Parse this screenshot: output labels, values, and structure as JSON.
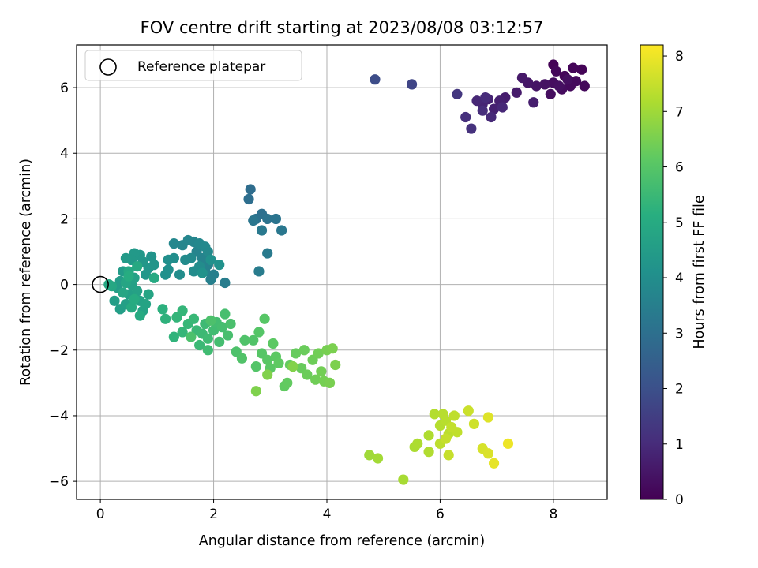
{
  "chart_data": {
    "type": "scatter",
    "title": "FOV centre drift starting at 2023/08/08 03:12:57",
    "xlabel": "Angular distance from reference (arcmin)",
    "ylabel": "Rotation from reference (arcmin)",
    "xlim": [
      -0.42,
      8.95
    ],
    "ylim": [
      -6.55,
      7.3
    ],
    "xticks": [
      "0",
      "2",
      "4",
      "6",
      "8"
    ],
    "yticks": [
      "−6",
      "−4",
      "−2",
      "0",
      "2",
      "4",
      "6"
    ],
    "grid": true,
    "legend": {
      "placement": "top-left",
      "entries": [
        "Reference platepar"
      ]
    },
    "reference_point": {
      "x": 0,
      "y": 0
    },
    "colorbar": {
      "label": "Hours from first FF file",
      "range": [
        0,
        8.2
      ],
      "ticks": [
        "0",
        "1",
        "2",
        "3",
        "4",
        "5",
        "6",
        "7",
        "8"
      ],
      "colormap": "viridis"
    },
    "points": [
      {
        "x": 8.0,
        "y": 6.7,
        "c": 0.05
      },
      {
        "x": 8.5,
        "y": 6.55,
        "c": 0.08
      },
      {
        "x": 8.35,
        "y": 6.6,
        "c": 0.1
      },
      {
        "x": 8.2,
        "y": 6.35,
        "c": 0.12
      },
      {
        "x": 8.05,
        "y": 6.5,
        "c": 0.15
      },
      {
        "x": 8.55,
        "y": 6.05,
        "c": 0.18
      },
      {
        "x": 8.4,
        "y": 6.2,
        "c": 0.2
      },
      {
        "x": 8.3,
        "y": 6.05,
        "c": 0.22
      },
      {
        "x": 8.15,
        "y": 5.95,
        "c": 0.25
      },
      {
        "x": 8.0,
        "y": 6.15,
        "c": 0.28
      },
      {
        "x": 7.95,
        "y": 5.8,
        "c": 0.3
      },
      {
        "x": 8.25,
        "y": 6.25,
        "c": 0.32
      },
      {
        "x": 8.1,
        "y": 6.05,
        "c": 0.35
      },
      {
        "x": 7.85,
        "y": 6.1,
        "c": 0.4
      },
      {
        "x": 7.7,
        "y": 6.05,
        "c": 0.45
      },
      {
        "x": 7.55,
        "y": 6.15,
        "c": 0.5
      },
      {
        "x": 7.45,
        "y": 6.3,
        "c": 0.55
      },
      {
        "x": 7.35,
        "y": 5.85,
        "c": 0.6
      },
      {
        "x": 7.15,
        "y": 5.7,
        "c": 0.65
      },
      {
        "x": 7.65,
        "y": 5.55,
        "c": 0.68
      },
      {
        "x": 7.05,
        "y": 5.6,
        "c": 0.72
      },
      {
        "x": 6.95,
        "y": 5.35,
        "c": 0.75
      },
      {
        "x": 6.85,
        "y": 5.65,
        "c": 0.8
      },
      {
        "x": 6.75,
        "y": 5.5,
        "c": 0.85
      },
      {
        "x": 6.65,
        "y": 5.6,
        "c": 0.9
      },
      {
        "x": 7.1,
        "y": 5.4,
        "c": 0.92
      },
      {
        "x": 6.9,
        "y": 5.1,
        "c": 0.95
      },
      {
        "x": 6.8,
        "y": 5.7,
        "c": 1.0
      },
      {
        "x": 6.75,
        "y": 5.3,
        "c": 1.05
      },
      {
        "x": 6.45,
        "y": 5.1,
        "c": 1.1
      },
      {
        "x": 6.55,
        "y": 4.75,
        "c": 1.15
      },
      {
        "x": 6.3,
        "y": 5.8,
        "c": 1.3
      },
      {
        "x": 5.5,
        "y": 6.1,
        "c": 1.7
      },
      {
        "x": 4.85,
        "y": 6.25,
        "c": 1.9
      },
      {
        "x": 2.65,
        "y": 2.9,
        "c": 2.9
      },
      {
        "x": 2.62,
        "y": 2.6,
        "c": 2.95
      },
      {
        "x": 2.85,
        "y": 2.15,
        "c": 3.0
      },
      {
        "x": 2.75,
        "y": 2.0,
        "c": 3.05
      },
      {
        "x": 2.95,
        "y": 2.0,
        "c": 3.1
      },
      {
        "x": 3.1,
        "y": 2.0,
        "c": 3.15
      },
      {
        "x": 2.7,
        "y": 1.95,
        "c": 3.2
      },
      {
        "x": 3.2,
        "y": 1.65,
        "c": 3.25
      },
      {
        "x": 2.85,
        "y": 1.65,
        "c": 3.3
      },
      {
        "x": 2.95,
        "y": 0.95,
        "c": 3.35
      },
      {
        "x": 2.8,
        "y": 0.4,
        "c": 3.4
      },
      {
        "x": 2.2,
        "y": 0.05,
        "c": 3.45
      },
      {
        "x": 2.0,
        "y": 0.3,
        "c": 3.5
      },
      {
        "x": 1.95,
        "y": 0.15,
        "c": 3.55
      },
      {
        "x": 1.85,
        "y": 0.4,
        "c": 3.6
      },
      {
        "x": 1.9,
        "y": 0.6,
        "c": 3.62
      },
      {
        "x": 1.8,
        "y": 0.8,
        "c": 3.65
      },
      {
        "x": 1.7,
        "y": 1.0,
        "c": 3.68
      },
      {
        "x": 1.65,
        "y": 1.3,
        "c": 3.7
      },
      {
        "x": 1.55,
        "y": 1.35,
        "c": 3.72
      },
      {
        "x": 1.45,
        "y": 1.2,
        "c": 3.75
      },
      {
        "x": 1.3,
        "y": 1.25,
        "c": 3.78
      },
      {
        "x": 1.75,
        "y": 1.25,
        "c": 3.8
      },
      {
        "x": 1.85,
        "y": 1.15,
        "c": 3.82
      },
      {
        "x": 1.9,
        "y": 1.0,
        "c": 3.85
      },
      {
        "x": 1.6,
        "y": 0.8,
        "c": 3.88
      },
      {
        "x": 1.5,
        "y": 0.75,
        "c": 3.9
      },
      {
        "x": 1.75,
        "y": 0.55,
        "c": 3.92
      },
      {
        "x": 1.65,
        "y": 0.4,
        "c": 3.95
      },
      {
        "x": 1.4,
        "y": 0.3,
        "c": 3.98
      },
      {
        "x": 1.3,
        "y": 0.8,
        "c": 4.0
      },
      {
        "x": 1.2,
        "y": 0.75,
        "c": 4.02
      },
      {
        "x": 1.2,
        "y": 0.45,
        "c": 4.05
      },
      {
        "x": 1.15,
        "y": 0.3,
        "c": 4.08
      },
      {
        "x": 1.95,
        "y": 0.75,
        "c": 4.1
      },
      {
        "x": 2.1,
        "y": 0.6,
        "c": 4.12
      },
      {
        "x": 1.8,
        "y": 0.35,
        "c": 4.15
      },
      {
        "x": 0.9,
        "y": 0.85,
        "c": 4.2
      },
      {
        "x": 0.95,
        "y": 0.6,
        "c": 4.25
      },
      {
        "x": 0.85,
        "y": 0.5,
        "c": 4.28
      },
      {
        "x": 0.8,
        "y": 0.3,
        "c": 4.3
      },
      {
        "x": 0.75,
        "y": 0.7,
        "c": 4.32
      },
      {
        "x": 0.7,
        "y": 0.9,
        "c": 4.35
      },
      {
        "x": 0.6,
        "y": 0.95,
        "c": 4.38
      },
      {
        "x": 0.55,
        "y": 0.75,
        "c": 4.4
      },
      {
        "x": 0.45,
        "y": 0.8,
        "c": 4.42
      },
      {
        "x": 0.4,
        "y": 0.4,
        "c": 4.45
      },
      {
        "x": 0.35,
        "y": 0.1,
        "c": 4.48
      },
      {
        "x": 0.3,
        "y": -0.1,
        "c": 4.5
      },
      {
        "x": 0.25,
        "y": -0.5,
        "c": 4.52
      },
      {
        "x": 0.35,
        "y": -0.75,
        "c": 4.55
      },
      {
        "x": 0.45,
        "y": -0.6,
        "c": 4.58
      },
      {
        "x": 0.5,
        "y": -0.3,
        "c": 4.6
      },
      {
        "x": 0.55,
        "y": 0.0,
        "c": 4.62
      },
      {
        "x": 0.6,
        "y": 0.2,
        "c": 4.65
      },
      {
        "x": 0.65,
        "y": -0.2,
        "c": 4.68
      },
      {
        "x": 0.7,
        "y": -0.5,
        "c": 4.7
      },
      {
        "x": 0.75,
        "y": -0.8,
        "c": 4.72
      },
      {
        "x": 0.8,
        "y": -0.6,
        "c": 4.75
      },
      {
        "x": 0.85,
        "y": -0.3,
        "c": 4.78
      },
      {
        "x": 0.45,
        "y": 0.05,
        "c": 4.8
      },
      {
        "x": 0.4,
        "y": -0.25,
        "c": 4.82
      },
      {
        "x": 0.2,
        "y": -0.05,
        "c": 4.85
      },
      {
        "x": 0.15,
        "y": 0.0,
        "c": 4.88
      },
      {
        "x": 0.5,
        "y": 0.4,
        "c": 4.9
      },
      {
        "x": 0.65,
        "y": 0.55,
        "c": 4.92
      },
      {
        "x": 0.95,
        "y": 0.2,
        "c": 4.95
      },
      {
        "x": 0.7,
        "y": -0.95,
        "c": 4.98
      },
      {
        "x": 0.55,
        "y": -0.7,
        "c": 5.0
      },
      {
        "x": 0.6,
        "y": -0.45,
        "c": 5.02
      },
      {
        "x": 0.5,
        "y": 0.25,
        "c": 5.05
      },
      {
        "x": 1.1,
        "y": -0.75,
        "c": 5.2
      },
      {
        "x": 1.15,
        "y": -1.05,
        "c": 5.25
      },
      {
        "x": 1.3,
        "y": -1.6,
        "c": 5.3
      },
      {
        "x": 1.35,
        "y": -1.0,
        "c": 5.35
      },
      {
        "x": 1.45,
        "y": -0.8,
        "c": 5.38
      },
      {
        "x": 1.45,
        "y": -1.45,
        "c": 5.4
      },
      {
        "x": 1.55,
        "y": -1.2,
        "c": 5.42
      },
      {
        "x": 1.65,
        "y": -1.05,
        "c": 5.45
      },
      {
        "x": 1.7,
        "y": -1.4,
        "c": 5.48
      },
      {
        "x": 1.75,
        "y": -1.85,
        "c": 5.5
      },
      {
        "x": 1.8,
        "y": -1.5,
        "c": 5.52
      },
      {
        "x": 1.85,
        "y": -1.2,
        "c": 5.55
      },
      {
        "x": 1.9,
        "y": -1.65,
        "c": 5.58
      },
      {
        "x": 1.9,
        "y": -2.0,
        "c": 5.6
      },
      {
        "x": 2.0,
        "y": -1.4,
        "c": 5.62
      },
      {
        "x": 2.05,
        "y": -1.15,
        "c": 5.65
      },
      {
        "x": 2.1,
        "y": -1.75,
        "c": 5.68
      },
      {
        "x": 2.15,
        "y": -1.3,
        "c": 5.7
      },
      {
        "x": 2.2,
        "y": -0.9,
        "c": 5.72
      },
      {
        "x": 2.25,
        "y": -1.55,
        "c": 5.75
      },
      {
        "x": 2.3,
        "y": -1.2,
        "c": 5.78
      },
      {
        "x": 1.6,
        "y": -1.6,
        "c": 5.8
      },
      {
        "x": 1.95,
        "y": -1.1,
        "c": 5.82
      },
      {
        "x": 2.4,
        "y": -2.05,
        "c": 5.85
      },
      {
        "x": 2.55,
        "y": -1.7,
        "c": 5.88
      },
      {
        "x": 2.5,
        "y": -2.25,
        "c": 5.9
      },
      {
        "x": 2.7,
        "y": -1.7,
        "c": 5.92
      },
      {
        "x": 2.75,
        "y": -2.5,
        "c": 5.95
      },
      {
        "x": 2.8,
        "y": -1.45,
        "c": 5.98
      },
      {
        "x": 2.85,
        "y": -2.1,
        "c": 6.0
      },
      {
        "x": 2.9,
        "y": -1.05,
        "c": 6.02
      },
      {
        "x": 2.95,
        "y": -2.3,
        "c": 6.05
      },
      {
        "x": 3.0,
        "y": -2.55,
        "c": 6.08
      },
      {
        "x": 3.05,
        "y": -1.8,
        "c": 6.1
      },
      {
        "x": 3.1,
        "y": -2.2,
        "c": 6.12
      },
      {
        "x": 3.15,
        "y": -2.4,
        "c": 6.15
      },
      {
        "x": 3.25,
        "y": -3.1,
        "c": 6.18
      },
      {
        "x": 3.3,
        "y": -3.0,
        "c": 6.2
      },
      {
        "x": 3.35,
        "y": -2.45,
        "c": 6.22
      },
      {
        "x": 3.45,
        "y": -2.1,
        "c": 6.25
      },
      {
        "x": 3.55,
        "y": -2.55,
        "c": 6.28
      },
      {
        "x": 3.6,
        "y": -2.0,
        "c": 6.3
      },
      {
        "x": 3.65,
        "y": -2.75,
        "c": 6.32
      },
      {
        "x": 3.75,
        "y": -2.3,
        "c": 6.35
      },
      {
        "x": 3.8,
        "y": -2.9,
        "c": 6.38
      },
      {
        "x": 3.85,
        "y": -2.1,
        "c": 6.4
      },
      {
        "x": 3.9,
        "y": -2.65,
        "c": 6.42
      },
      {
        "x": 3.95,
        "y": -2.95,
        "c": 6.45
      },
      {
        "x": 4.0,
        "y": -2.0,
        "c": 6.48
      },
      {
        "x": 4.05,
        "y": -3.0,
        "c": 6.5
      },
      {
        "x": 4.1,
        "y": -1.95,
        "c": 6.52
      },
      {
        "x": 4.15,
        "y": -2.45,
        "c": 6.55
      },
      {
        "x": 2.75,
        "y": -3.25,
        "c": 6.58
      },
      {
        "x": 2.95,
        "y": -2.75,
        "c": 6.6
      },
      {
        "x": 3.4,
        "y": -2.5,
        "c": 6.62
      },
      {
        "x": 4.75,
        "y": -5.2,
        "c": 7.0
      },
      {
        "x": 4.9,
        "y": -5.3,
        "c": 7.05
      },
      {
        "x": 5.35,
        "y": -5.95,
        "c": 7.1
      },
      {
        "x": 5.55,
        "y": -4.95,
        "c": 7.15
      },
      {
        "x": 5.6,
        "y": -4.85,
        "c": 7.18
      },
      {
        "x": 5.8,
        "y": -4.6,
        "c": 7.2
      },
      {
        "x": 5.8,
        "y": -5.1,
        "c": 7.22
      },
      {
        "x": 5.9,
        "y": -3.95,
        "c": 7.25
      },
      {
        "x": 6.0,
        "y": -4.3,
        "c": 7.28
      },
      {
        "x": 6.05,
        "y": -3.95,
        "c": 7.3
      },
      {
        "x": 6.1,
        "y": -4.15,
        "c": 7.32
      },
      {
        "x": 6.15,
        "y": -4.55,
        "c": 7.35
      },
      {
        "x": 6.0,
        "y": -4.85,
        "c": 7.38
      },
      {
        "x": 6.25,
        "y": -4.0,
        "c": 7.4
      },
      {
        "x": 6.3,
        "y": -4.5,
        "c": 7.42
      },
      {
        "x": 6.2,
        "y": -4.35,
        "c": 7.45
      },
      {
        "x": 6.1,
        "y": -4.7,
        "c": 7.48
      },
      {
        "x": 6.15,
        "y": -5.2,
        "c": 7.5
      },
      {
        "x": 6.5,
        "y": -3.85,
        "c": 7.55
      },
      {
        "x": 6.6,
        "y": -4.25,
        "c": 7.6
      },
      {
        "x": 6.75,
        "y": -5.0,
        "c": 7.7
      },
      {
        "x": 6.85,
        "y": -5.15,
        "c": 7.75
      },
      {
        "x": 6.85,
        "y": -4.05,
        "c": 7.8
      },
      {
        "x": 6.95,
        "y": -5.45,
        "c": 7.9
      },
      {
        "x": 7.2,
        "y": -4.85,
        "c": 8.0
      }
    ]
  }
}
